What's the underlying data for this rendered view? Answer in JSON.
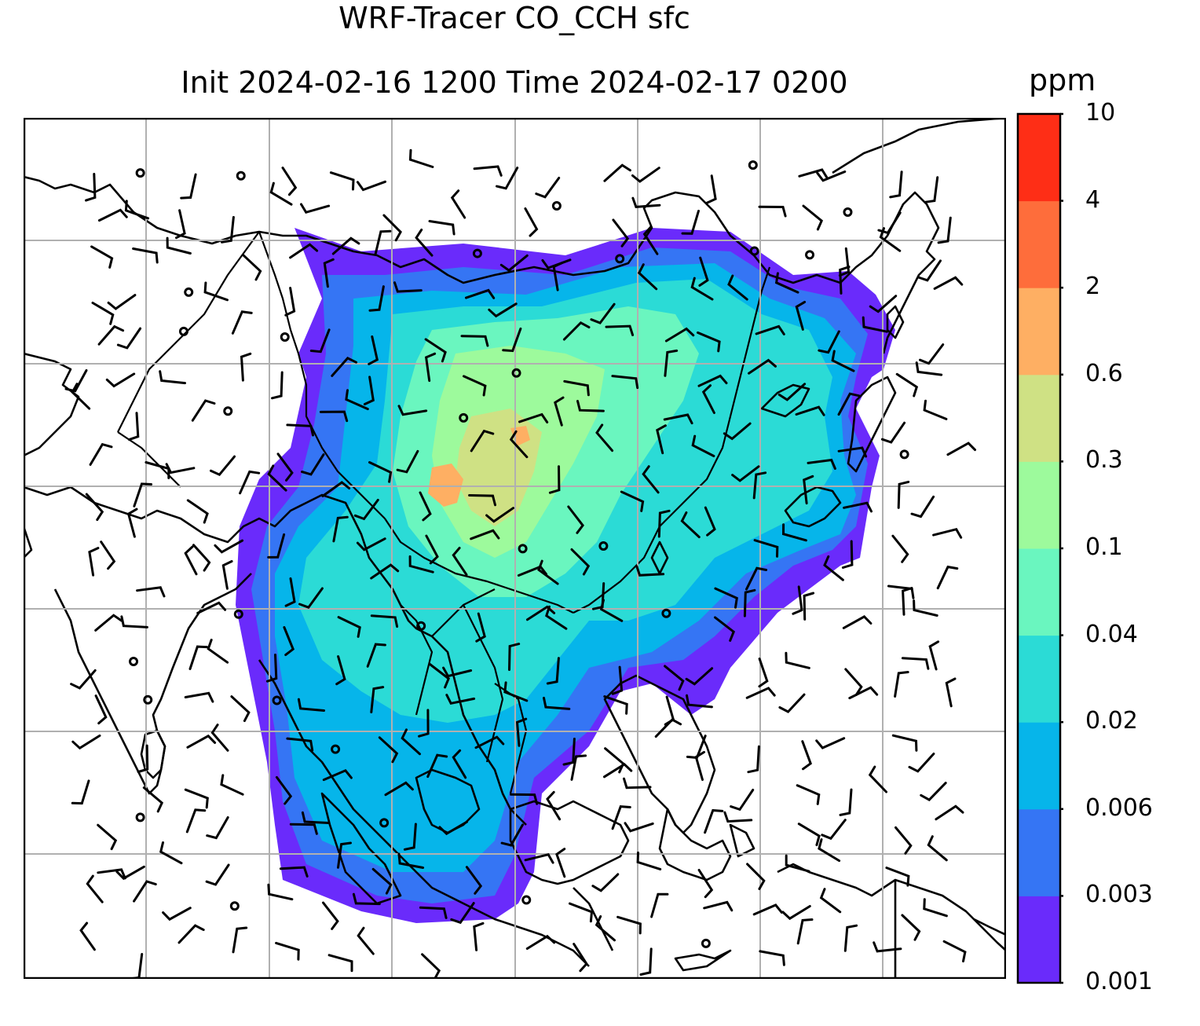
{
  "title": {
    "line1": "WRF-Tracer CO_CCH sfc",
    "line2": "Init 2024-02-16 1200 Time 2024-02-17 0200"
  },
  "colorbar": {
    "unit": "ppm",
    "levels": [
      "0.001",
      "0.003",
      "0.006",
      "0.02",
      "0.04",
      "0.1",
      "0.3",
      "0.6",
      "2",
      "4",
      "10"
    ],
    "colors": [
      "#6a2bfb",
      "#3575f4",
      "#06b5ea",
      "#2bdbd6",
      "#6af6bf",
      "#9dfa9c",
      "#cfe184",
      "#feaf63",
      "#fe6d3b",
      "#fe2e16"
    ]
  },
  "map": {
    "overlay": "wind-barbs",
    "features": [
      "coastlines",
      "country-borders",
      "lat-lon-gridlines"
    ]
  }
}
